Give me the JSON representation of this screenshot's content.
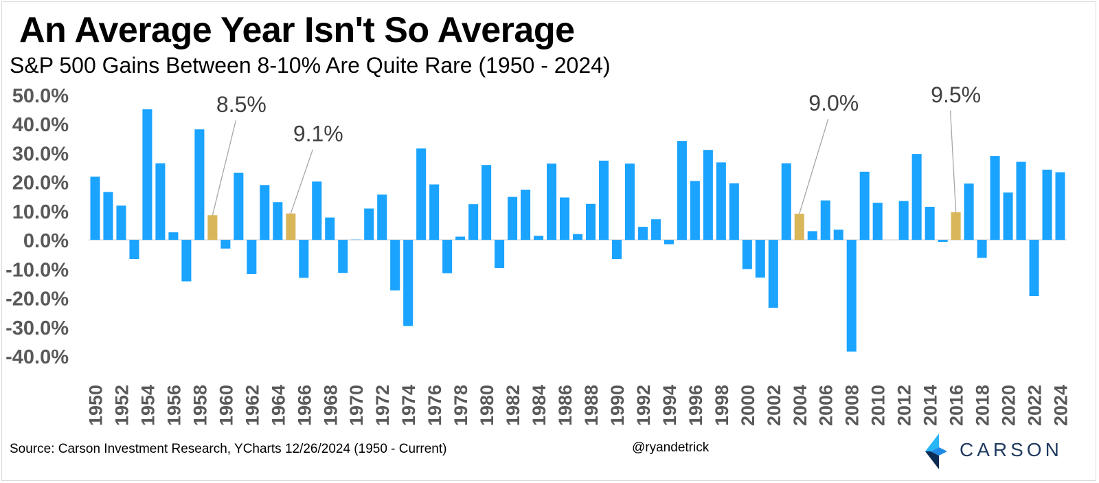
{
  "title": "An Average Year Isn't So Average",
  "subtitle": "S&P 500 Gains Between 8-10% Are Quite Rare (1950 - 2024)",
  "source": "Source: Carson Investment Research, YCharts 12/26/2024 (1950 - Current)",
  "handle": "@ryandetrick",
  "logo": {
    "text": "CARSON"
  },
  "colors": {
    "normal": "#1aa3ff",
    "highlight": "#d9b65a",
    "leader": "#a6a6a6",
    "zero_line": "#d9d9d9"
  },
  "chart_data": {
    "type": "bar",
    "ylim": [
      -40,
      50
    ],
    "yticks": [
      50,
      40,
      30,
      20,
      10,
      0,
      -10,
      -20,
      -30,
      -40
    ],
    "ytick_labels": [
      "50.0%",
      "40.0%",
      "30.0%",
      "20.0%",
      "10.0%",
      "0.0%",
      "-10.0%",
      "-20.0%",
      "-30.0%",
      "-40.0%"
    ],
    "categories": [
      "1950",
      "1951",
      "1952",
      "1953",
      "1954",
      "1955",
      "1956",
      "1957",
      "1958",
      "1959",
      "1960",
      "1961",
      "1962",
      "1963",
      "1964",
      "1965",
      "1966",
      "1967",
      "1968",
      "1969",
      "1970",
      "1971",
      "1972",
      "1973",
      "1974",
      "1975",
      "1976",
      "1977",
      "1978",
      "1979",
      "1980",
      "1981",
      "1982",
      "1983",
      "1984",
      "1985",
      "1986",
      "1987",
      "1988",
      "1989",
      "1990",
      "1991",
      "1992",
      "1993",
      "1994",
      "1995",
      "1996",
      "1997",
      "1998",
      "1999",
      "2000",
      "2001",
      "2002",
      "2003",
      "2004",
      "2005",
      "2006",
      "2007",
      "2008",
      "2009",
      "2010",
      "2011",
      "2012",
      "2013",
      "2014",
      "2015",
      "2016",
      "2017",
      "2018",
      "2019",
      "2020",
      "2021",
      "2022",
      "2023",
      "2024"
    ],
    "xtick_labels": [
      "1950",
      "1952",
      "1954",
      "1956",
      "1958",
      "1960",
      "1962",
      "1964",
      "1966",
      "1968",
      "1970",
      "1972",
      "1974",
      "1976",
      "1978",
      "1980",
      "1982",
      "1984",
      "1986",
      "1988",
      "1990",
      "1992",
      "1994",
      "1996",
      "1998",
      "2000",
      "2002",
      "2004",
      "2006",
      "2008",
      "2010",
      "2012",
      "2014",
      "2016",
      "2018",
      "2020",
      "2022",
      "2024"
    ],
    "values": [
      21.8,
      16.5,
      11.8,
      -6.6,
      45.0,
      26.4,
      2.6,
      -14.3,
      38.1,
      8.5,
      -3.0,
      23.1,
      -11.8,
      18.9,
      13.0,
      9.1,
      -13.1,
      20.1,
      7.7,
      -11.4,
      0.1,
      10.8,
      15.6,
      -17.4,
      -29.7,
      31.5,
      19.1,
      -11.5,
      1.1,
      12.3,
      25.8,
      -9.7,
      14.8,
      17.3,
      1.4,
      26.3,
      14.6,
      2.0,
      12.4,
      27.3,
      -6.6,
      26.3,
      4.5,
      7.1,
      -1.5,
      34.1,
      20.3,
      31.0,
      26.7,
      19.5,
      -10.1,
      -13.0,
      -23.4,
      26.4,
      9.0,
      3.0,
      13.6,
      3.5,
      -38.5,
      23.5,
      12.8,
      0.0,
      13.4,
      29.6,
      11.4,
      -0.7,
      9.5,
      19.4,
      -6.2,
      28.9,
      16.3,
      26.9,
      -19.4,
      24.2,
      23.3
    ],
    "highlights": [
      {
        "year": "1959",
        "value": 8.5,
        "label": "8.5%"
      },
      {
        "year": "1965",
        "value": 9.1,
        "label": "9.1%"
      },
      {
        "year": "2004",
        "value": 9.0,
        "label": "9.0%"
      },
      {
        "year": "2016",
        "value": 9.5,
        "label": "9.5%"
      }
    ],
    "grid": false,
    "legend": "none"
  }
}
